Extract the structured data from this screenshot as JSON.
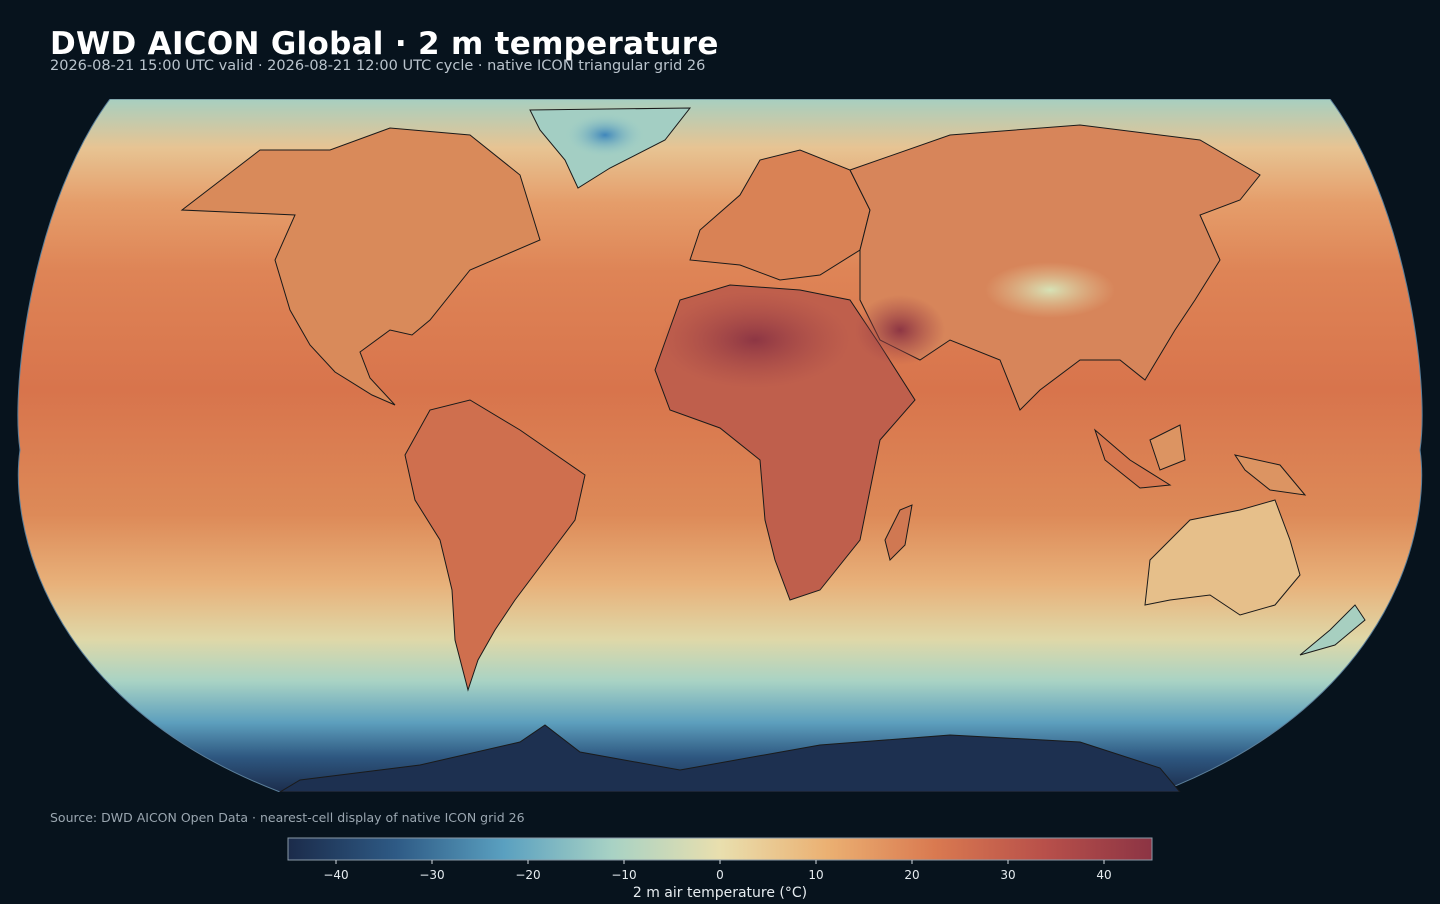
{
  "header": {
    "title": "DWD AICON Global · 2 m temperature",
    "subtitle": "2026-08-21 15:00 UTC valid · 2026-08-21 12:00 UTC cycle · native ICON triangular grid 26"
  },
  "footer": {
    "source": "Source: DWD AICON Open Data · nearest-cell display of native ICON grid 26"
  },
  "colorbar": {
    "label": "2 m air temperature (°C)",
    "min": -45,
    "max": 45,
    "ticks": [
      -40,
      -30,
      -20,
      -10,
      0,
      10,
      20,
      30,
      40
    ],
    "tick_labels": [
      "−40",
      "−30",
      "−20",
      "−10",
      "0",
      "10",
      "20",
      "30",
      "40"
    ],
    "stops": [
      "#1b2b4a",
      "#2e5a85",
      "#5aa0c0",
      "#a8d2c4",
      "#e9dfae",
      "#ebb072",
      "#d97950",
      "#b8504a",
      "#8c3444"
    ]
  },
  "map": {
    "projection": "Robinson",
    "ocean_color": "#d9804f",
    "background": "#07131d",
    "outline_color": "#5b7f9a"
  }
}
